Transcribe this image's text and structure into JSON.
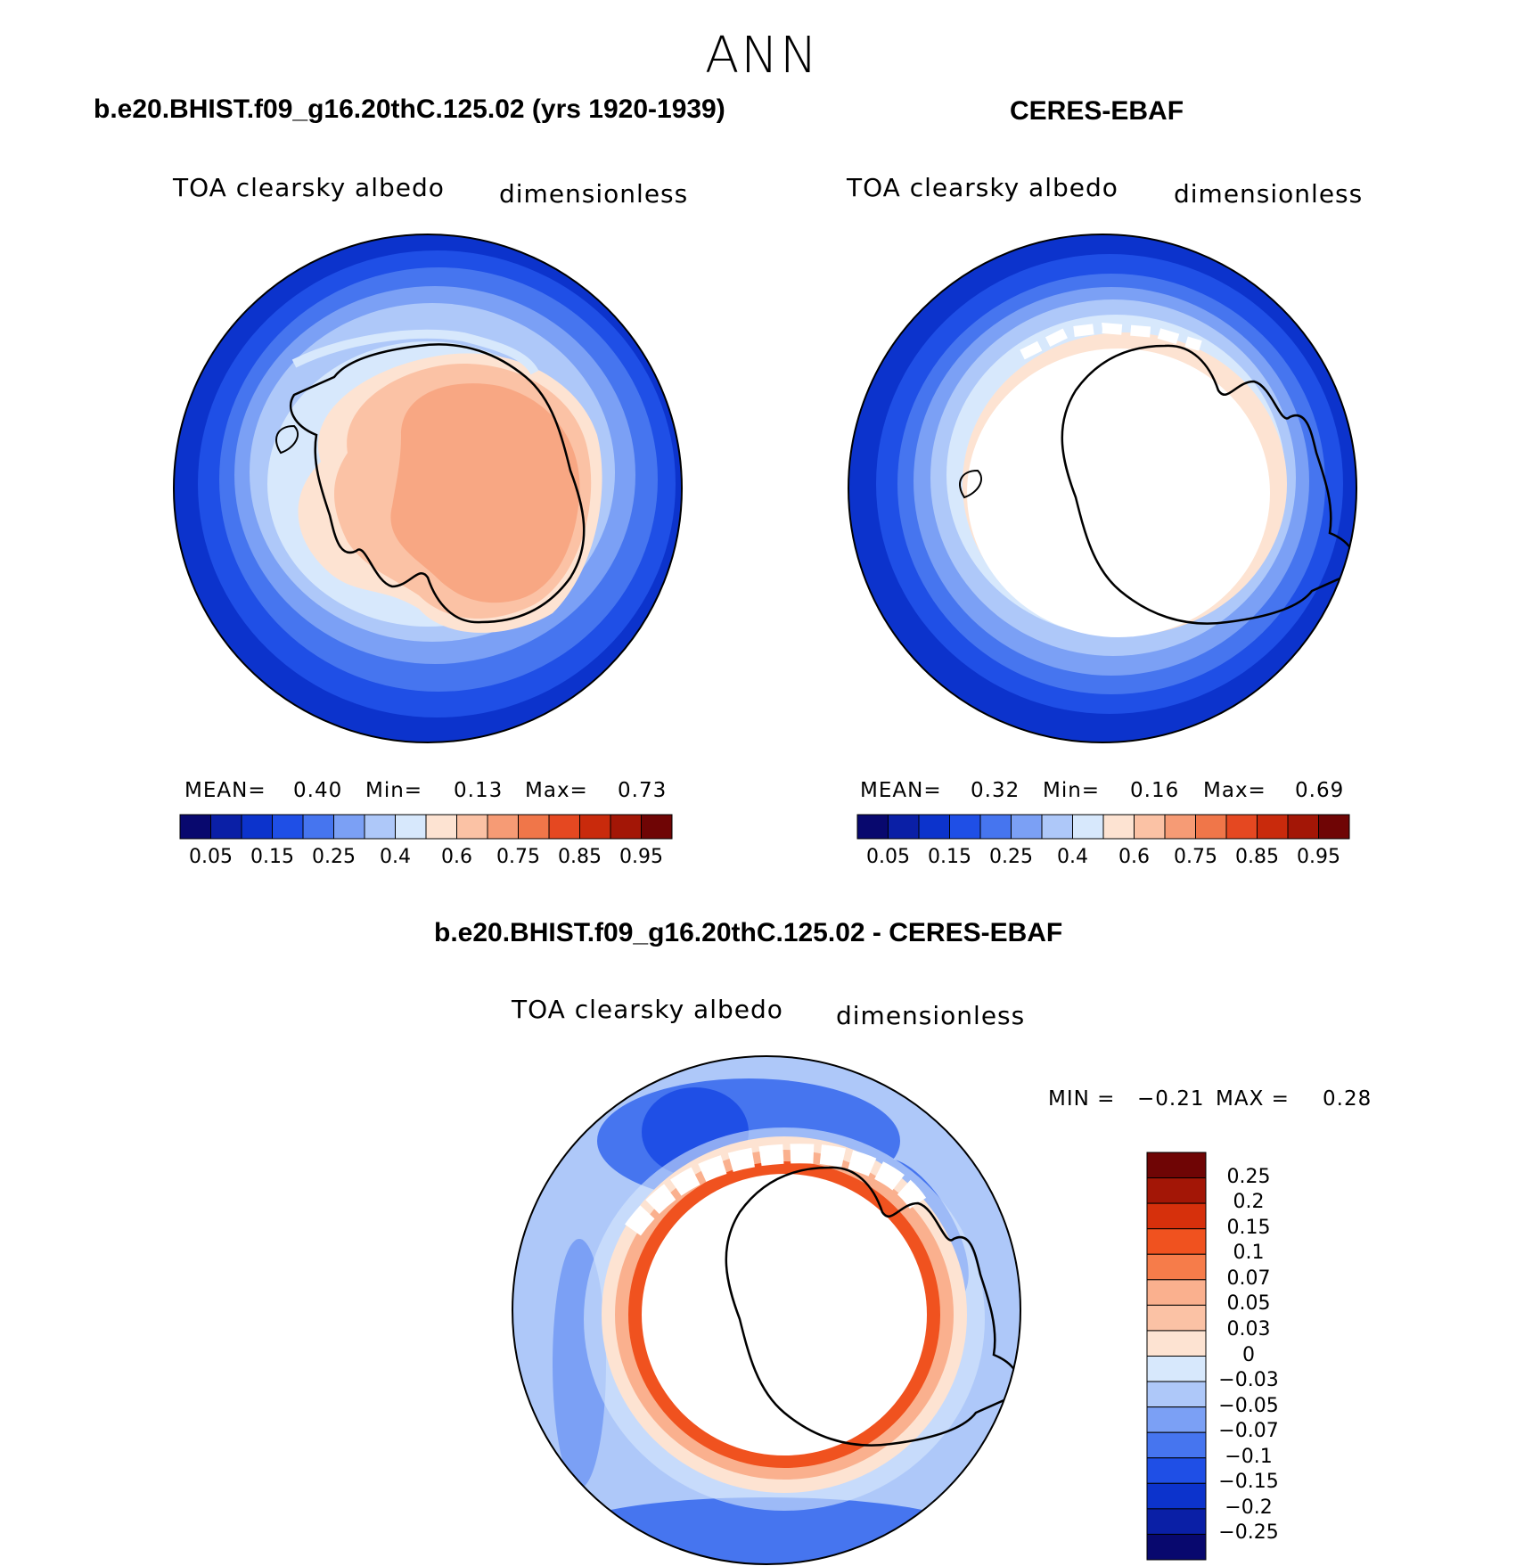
{
  "title": "ANN",
  "panels": [
    {
      "id": "model",
      "case_title": "b.e20.BHIST.f09_g16.20thC.125.02 (yrs 1920-1939)",
      "variable": "TOA clearsky albedo",
      "units": "dimensionless",
      "stats": {
        "mean_label": "MEAN=",
        "mean": "0.40",
        "min_label": "Min=",
        "min": "0.13",
        "max_label": "Max=",
        "max": "0.73"
      }
    },
    {
      "id": "obs",
      "case_title": "CERES-EBAF",
      "variable": "TOA clearsky albedo",
      "units": "dimensionless",
      "stats": {
        "mean_label": "MEAN=",
        "mean": "0.32",
        "min_label": "Min=",
        "min": "0.16",
        "max_label": "Max=",
        "max": "0.69"
      }
    },
    {
      "id": "diff",
      "case_title": "b.e20.BHIST.f09_g16.20thC.125.02 - CERES-EBAF",
      "variable": "TOA clearsky albedo",
      "units": "dimensionless",
      "stats": {
        "min_label": "MIN =",
        "min": "−0.21",
        "max_label": "MAX =",
        "max": "0.28"
      }
    }
  ],
  "abs_colorbar": {
    "colors": [
      "#08086e",
      "#0a1fa6",
      "#0c33cc",
      "#1f4fe6",
      "#4675ef",
      "#7ba0f5",
      "#aec8f9",
      "#d7e8fc",
      "#fde3d2",
      "#fbc2a5",
      "#f69b75",
      "#f07649",
      "#e54821",
      "#c92a0c",
      "#a31606",
      "#6f0505"
    ],
    "labels": [
      "0.05",
      "0.15",
      "0.25",
      "0.4",
      "0.6",
      "0.75",
      "0.85",
      "0.95"
    ]
  },
  "diff_colorbar": {
    "colors": [
      "#6f0505",
      "#a31606",
      "#d6300c",
      "#f0521f",
      "#f67c4a",
      "#fab08e",
      "#fde3d2",
      "#d7e8fc",
      "#aec8f9",
      "#7ba0f5",
      "#4675ef",
      "#1f4fe6",
      "#0c33cc",
      "#08086e"
    ],
    "labels": [
      "0.25",
      "0.2",
      "0.15",
      "0.1",
      "0.07",
      "0.05",
      "0.03",
      "0",
      "−0.03",
      "−0.05",
      "−0.07",
      "−0.1",
      "−0.15",
      "−0.2",
      "−0.25"
    ]
  }
}
